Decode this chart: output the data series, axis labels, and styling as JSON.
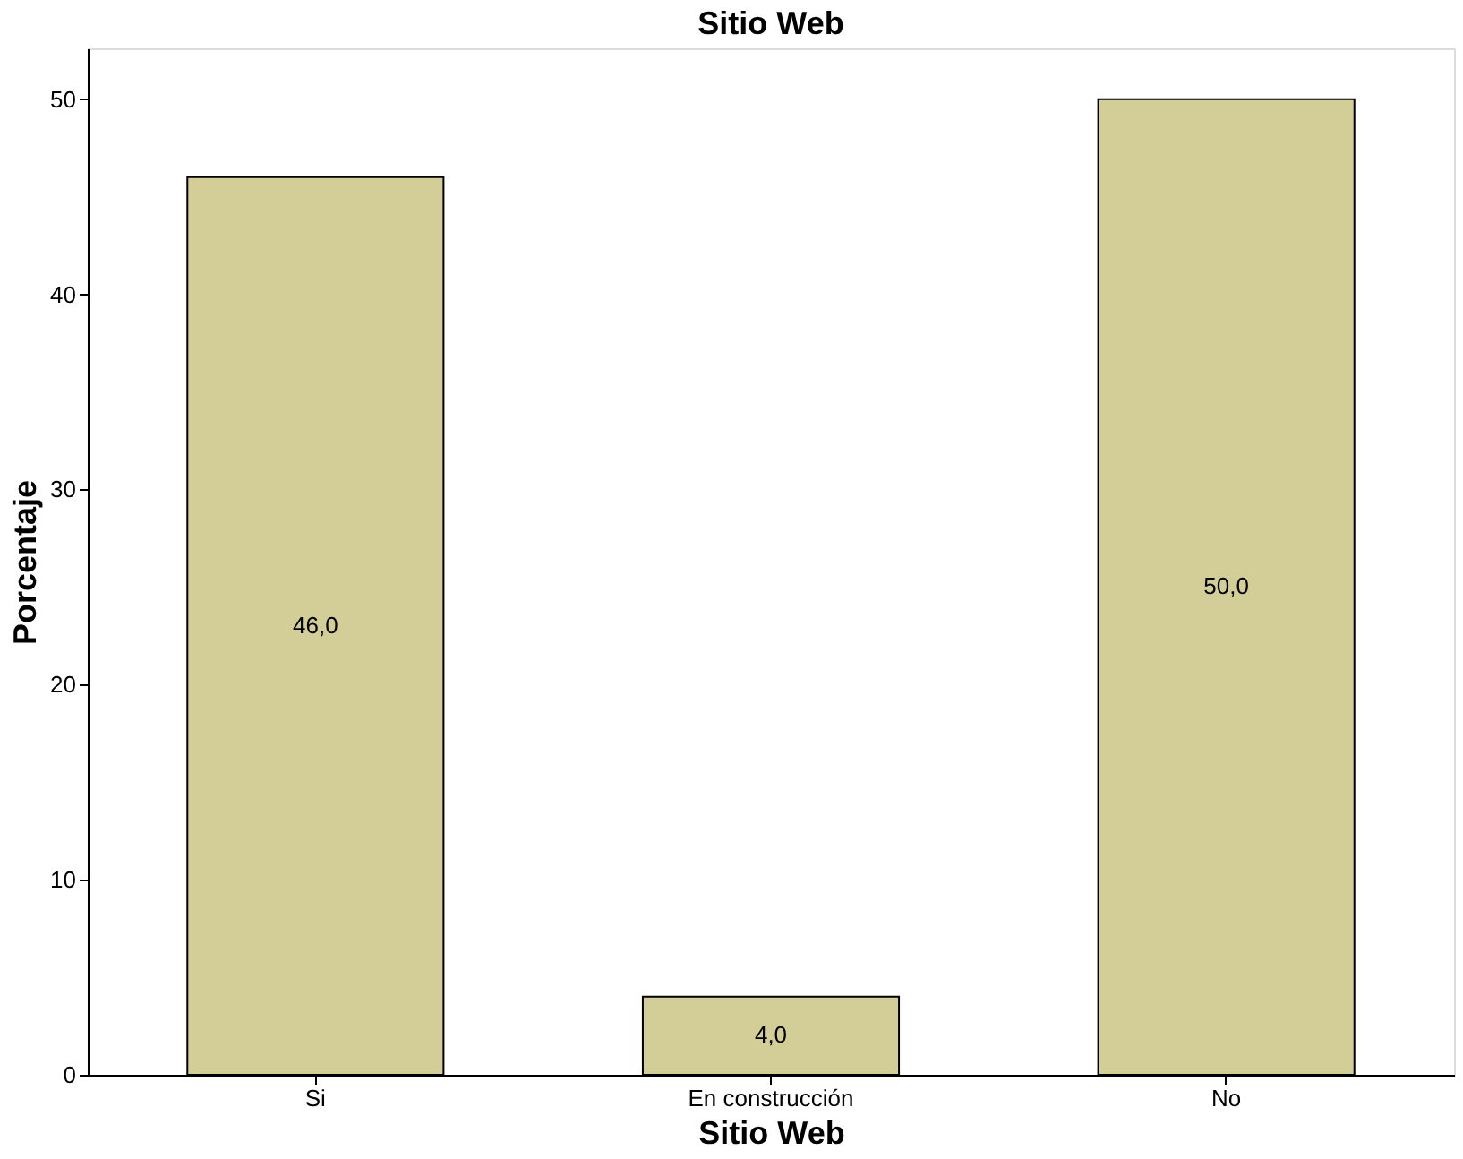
{
  "chart_data": {
    "type": "bar",
    "title": "Sitio Web",
    "xlabel": "Sitio Web",
    "ylabel": "Porcentaje",
    "categories": [
      "Si",
      "En construcción",
      "No"
    ],
    "values": [
      46.0,
      4.0,
      50.0
    ],
    "value_labels": [
      "46,0",
      "4,0",
      "50,0"
    ],
    "color": "#d3ce97",
    "ylim": [
      0,
      52.6
    ],
    "yticks": [
      0,
      10,
      20,
      30,
      40,
      50
    ],
    "grid": false
  }
}
